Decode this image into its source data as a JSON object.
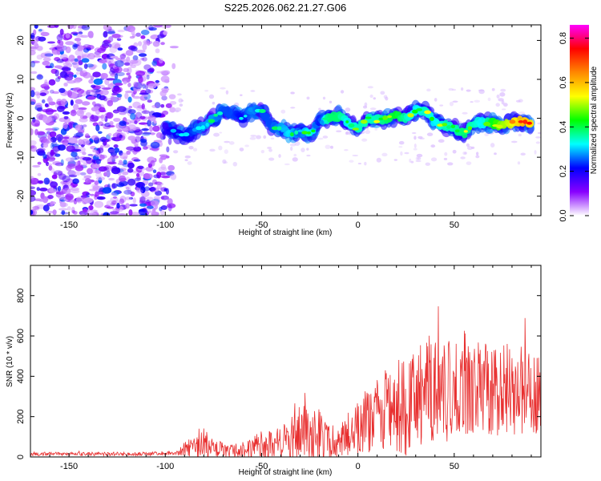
{
  "chart_data": [
    {
      "type": "heatmap",
      "title": "S225.2026.062.21.27.G06",
      "xlabel": "Height of straight line (km)",
      "ylabel": "Frequency (Hz)",
      "xlim": [
        -170,
        95
      ],
      "ylim": [
        -25,
        24
      ],
      "xticks": [
        -150,
        -100,
        -50,
        0,
        50
      ],
      "yticks": [
        -20,
        -10,
        0,
        10,
        20
      ],
      "colorbar": {
        "label": "Normalized spectral amplitude",
        "range": [
          0.0,
          0.86
        ],
        "ticks": [
          0.0,
          0.2,
          0.4,
          0.6,
          0.8
        ],
        "tick_labels": [
          "0.0",
          "0.2",
          "0.4",
          "0.6",
          "0.8"
        ],
        "colors": [
          "#ffffff",
          "#8800ff",
          "#0000ff",
          "#00ffff",
          "#00ff00",
          "#ffff00",
          "#ff8800",
          "#ff0000",
          "#ff00ff"
        ]
      },
      "noise_region": {
        "x": [
          -170,
          -95
        ],
        "y": [
          -25,
          24
        ]
      },
      "ridge": {
        "x": [
          -100,
          -95,
          -90,
          -85,
          -80,
          -75,
          -70,
          -65,
          -60,
          -55,
          -50,
          -45,
          -40,
          -35,
          -30,
          -25,
          -20,
          -15,
          -10,
          -5,
          0,
          5,
          10,
          15,
          20,
          25,
          30,
          35,
          40,
          45,
          50,
          55,
          60,
          65,
          70,
          75,
          80,
          85,
          90
        ],
        "freq": [
          -2.5,
          -3.5,
          -4.5,
          -3,
          -2,
          0,
          2,
          1,
          0,
          2,
          2,
          -2,
          -2.5,
          -4,
          -3.5,
          -4,
          -1,
          0,
          0.5,
          -1,
          -3,
          0,
          -0.5,
          0,
          0.5,
          0,
          2,
          2,
          -1,
          -2,
          -2.5,
          -4,
          -1.5,
          -1,
          -1.5,
          -2,
          -1,
          -1,
          -1.5
        ],
        "amplitude": [
          0.25,
          0.3,
          0.3,
          0.35,
          0.4,
          0.4,
          0.35,
          0.35,
          0.3,
          0.4,
          0.35,
          0.35,
          0.4,
          0.45,
          0.35,
          0.5,
          0.3,
          0.55,
          0.55,
          0.45,
          0.5,
          0.5,
          0.5,
          0.55,
          0.6,
          0.5,
          0.45,
          0.5,
          0.45,
          0.5,
          0.5,
          0.55,
          0.5,
          0.45,
          0.6,
          0.7,
          0.75,
          0.85,
          0.8
        ]
      }
    },
    {
      "type": "line",
      "xlabel": "Height of straight line (km)",
      "ylabel": "SNR (10 * v/v)",
      "xlim": [
        -170,
        95
      ],
      "ylim": [
        0,
        950
      ],
      "xticks": [
        -150,
        -100,
        -50,
        0,
        50
      ],
      "yticks": [
        0,
        200,
        400,
        600,
        800
      ],
      "color": "#e83030",
      "envelope": {
        "x": [
          -170,
          -150,
          -130,
          -110,
          -95,
          -90,
          -85,
          -80,
          -75,
          -70,
          -65,
          -60,
          -55,
          -50,
          -45,
          -40,
          -35,
          -30,
          -25,
          -20,
          -15,
          -10,
          -5,
          0,
          5,
          10,
          15,
          20,
          25,
          30,
          35,
          40,
          45,
          50,
          55,
          60,
          65,
          70,
          75,
          80,
          85,
          90,
          95
        ],
        "mean": [
          15,
          15,
          15,
          15,
          20,
          40,
          45,
          60,
          40,
          35,
          30,
          40,
          45,
          60,
          60,
          70,
          100,
          130,
          120,
          120,
          75,
          60,
          120,
          150,
          180,
          220,
          240,
          260,
          240,
          300,
          350,
          360,
          330,
          330,
          360,
          350,
          340,
          320,
          330,
          340,
          330,
          340,
          330
        ],
        "amp": [
          10,
          10,
          10,
          10,
          12,
          40,
          60,
          90,
          60,
          50,
          40,
          50,
          60,
          80,
          80,
          100,
          160,
          180,
          170,
          170,
          110,
          80,
          130,
          160,
          180,
          200,
          230,
          260,
          260,
          280,
          320,
          330,
          300,
          280,
          300,
          280,
          260,
          240,
          250,
          260,
          240,
          260,
          250
        ]
      }
    }
  ]
}
